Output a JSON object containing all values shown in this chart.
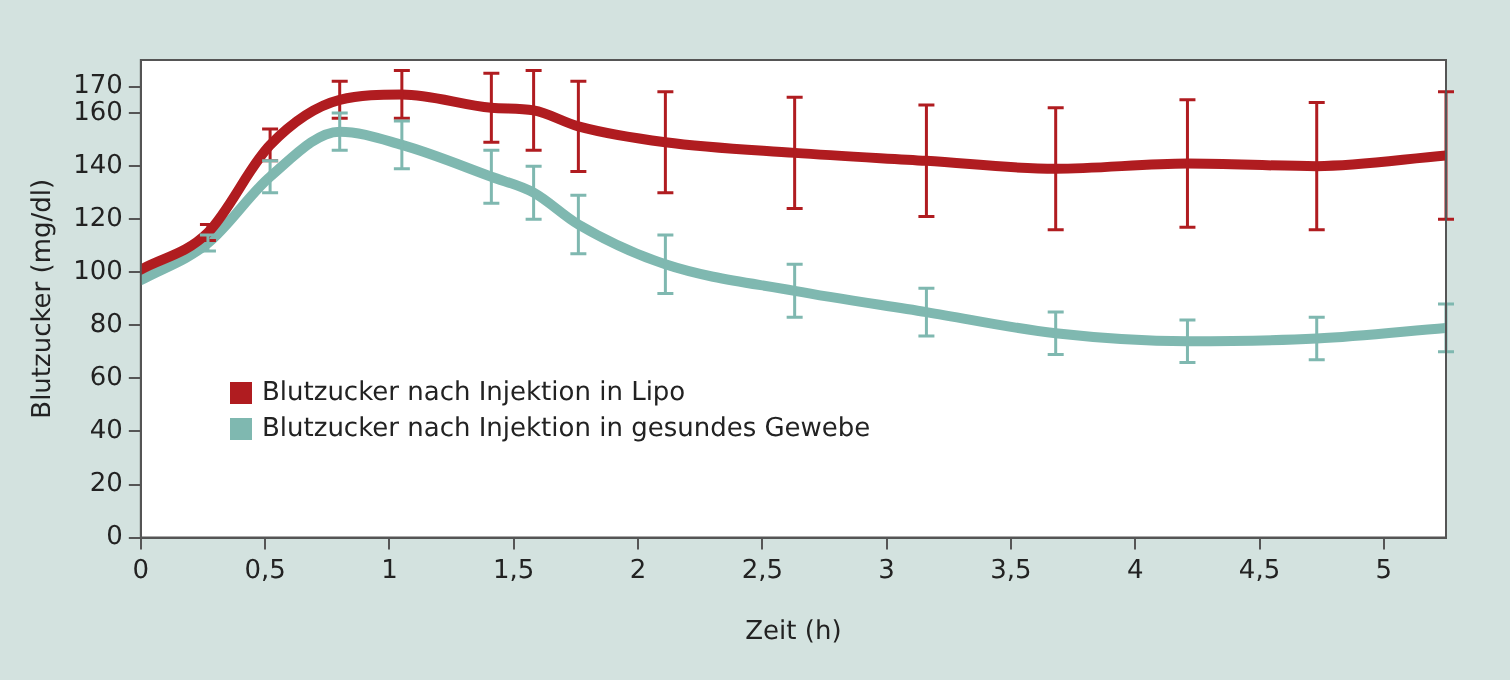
{
  "chart_data": {
    "type": "line",
    "xlabel": "Zeit (h)",
    "ylabel": "Blutzucker (mg/dl)",
    "x": [
      0,
      0.27,
      0.52,
      0.8,
      1.05,
      1.41,
      1.58,
      1.76,
      2.11,
      2.63,
      3.16,
      3.68,
      4.21,
      4.73,
      5.25
    ],
    "series": [
      {
        "name": "Blutzucker nach Injektion in Lipo",
        "color": "#b01c20",
        "values": [
          101,
          115,
          148,
          165,
          167,
          162,
          161,
          155,
          149,
          145,
          142,
          139,
          141,
          140,
          144
        ],
        "errors": [
          null,
          3,
          6,
          7,
          9,
          13,
          15,
          17,
          19,
          21,
          21,
          23,
          24,
          24,
          24
        ]
      },
      {
        "name": "Blutzucker nach Injektion in gesundes Gewebe",
        "color": "#7fb8b0",
        "values": [
          97,
          111,
          136,
          153,
          148,
          136,
          130,
          118,
          103,
          93,
          85,
          77,
          74,
          75,
          79
        ],
        "errors": [
          null,
          3,
          6,
          7,
          9,
          10,
          10,
          11,
          11,
          10,
          9,
          8,
          8,
          8,
          9
        ]
      }
    ],
    "xlim": [
      0,
      5.25
    ],
    "xticks": [
      0,
      {
        "value": 0.5,
        "label": "0,5"
      },
      1,
      {
        "value": 1.5,
        "label": "1,5"
      },
      2,
      {
        "value": 2.5,
        "label": "2,5"
      },
      3,
      {
        "value": 3.5,
        "label": "3,5"
      },
      4,
      {
        "value": 4.5,
        "label": "4,5"
      },
      5
    ],
    "ylim": [
      0,
      180
    ],
    "yticks": [
      0,
      20,
      40,
      60,
      80,
      100,
      120,
      140,
      160,
      170
    ],
    "grid": false,
    "legend": "bottom left",
    "marker": "none",
    "line_style": "solid"
  }
}
